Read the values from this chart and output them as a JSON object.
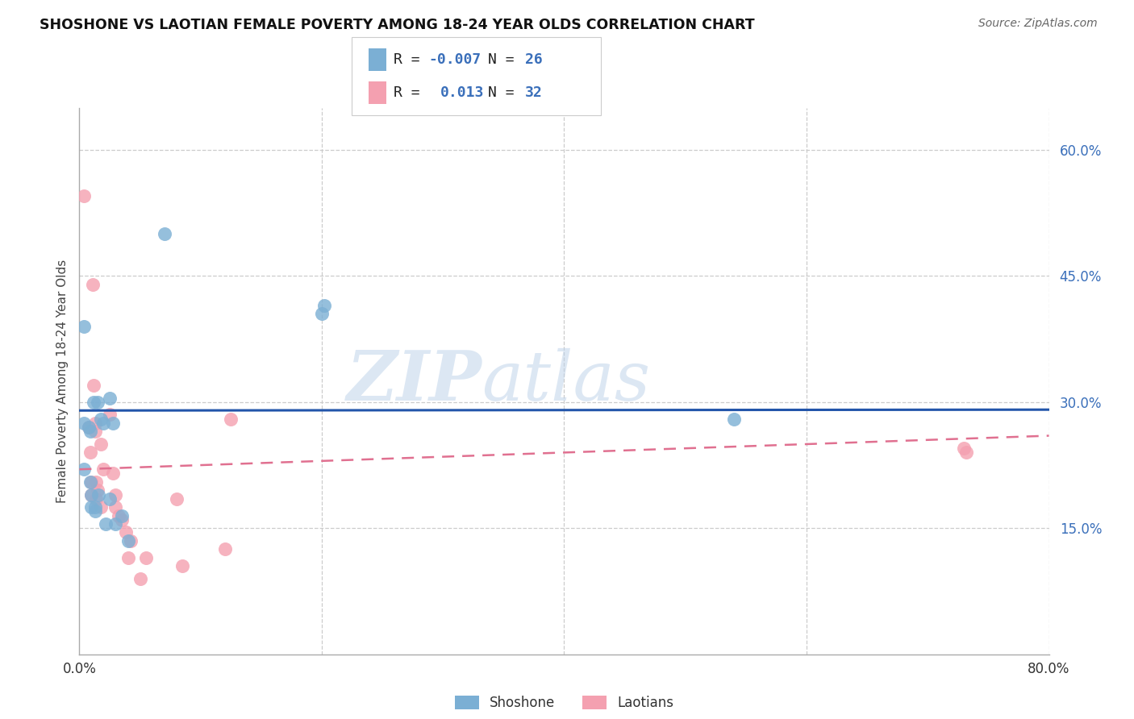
{
  "title": "SHOSHONE VS LAOTIAN FEMALE POVERTY AMONG 18-24 YEAR OLDS CORRELATION CHART",
  "source": "Source: ZipAtlas.com",
  "ylabel": "Female Poverty Among 18-24 Year Olds",
  "xlim": [
    0.0,
    0.8
  ],
  "ylim": [
    0.0,
    0.65
  ],
  "xticks": [
    0.0,
    0.1,
    0.2,
    0.3,
    0.4,
    0.5,
    0.6,
    0.7,
    0.8
  ],
  "ytick_right_labels": [
    "60.0%",
    "45.0%",
    "30.0%",
    "15.0%"
  ],
  "ytick_right_values": [
    0.6,
    0.45,
    0.3,
    0.15
  ],
  "shoshone_color": "#7bafd4",
  "laotian_color": "#f4a0b0",
  "shoshone_line_color": "#2255aa",
  "laotian_line_color": "#e07090",
  "watermark_zip": "ZIP",
  "watermark_atlas": "atlas",
  "shoshone_line_y0": 0.29,
  "shoshone_line_y1": 0.291,
  "laotian_line_y0": 0.22,
  "laotian_line_y1": 0.26,
  "shoshone_x": [
    0.004,
    0.004,
    0.004,
    0.008,
    0.009,
    0.009,
    0.01,
    0.01,
    0.012,
    0.013,
    0.013,
    0.015,
    0.016,
    0.018,
    0.02,
    0.022,
    0.025,
    0.025,
    0.028,
    0.03,
    0.035,
    0.04,
    0.07,
    0.2,
    0.202,
    0.54
  ],
  "shoshone_y": [
    0.39,
    0.275,
    0.22,
    0.27,
    0.265,
    0.205,
    0.19,
    0.175,
    0.3,
    0.175,
    0.17,
    0.3,
    0.19,
    0.28,
    0.275,
    0.155,
    0.305,
    0.185,
    0.275,
    0.155,
    0.165,
    0.135,
    0.5,
    0.405,
    0.415,
    0.28
  ],
  "laotian_x": [
    0.004,
    0.008,
    0.009,
    0.01,
    0.01,
    0.011,
    0.012,
    0.013,
    0.013,
    0.014,
    0.014,
    0.015,
    0.018,
    0.018,
    0.02,
    0.025,
    0.028,
    0.03,
    0.03,
    0.032,
    0.035,
    0.038,
    0.04,
    0.042,
    0.05,
    0.055,
    0.08,
    0.085,
    0.12,
    0.125,
    0.73,
    0.732
  ],
  "laotian_y": [
    0.545,
    0.27,
    0.24,
    0.205,
    0.19,
    0.44,
    0.32,
    0.275,
    0.265,
    0.205,
    0.185,
    0.195,
    0.25,
    0.175,
    0.22,
    0.285,
    0.215,
    0.19,
    0.175,
    0.165,
    0.16,
    0.145,
    0.115,
    0.135,
    0.09,
    0.115,
    0.185,
    0.105,
    0.125,
    0.28,
    0.245,
    0.24
  ],
  "background_color": "#ffffff",
  "grid_color": "#cccccc",
  "right_axis_color": "#3a6fba"
}
